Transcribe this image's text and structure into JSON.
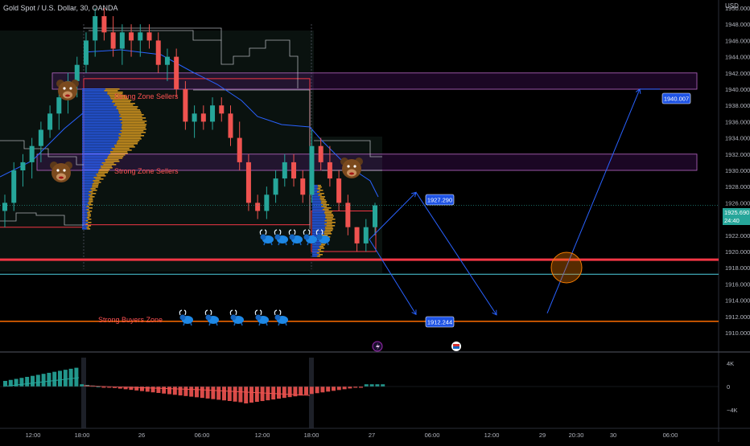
{
  "header": {
    "symbol_title": "Gold Spot / U.S. Dollar, 30, OANDA",
    "currency": "USD"
  },
  "colors": {
    "up": "#26a69a",
    "down": "#ef5350",
    "text": "#b2b5be",
    "grid": "#131722",
    "zone_fill": "#7b1fa2",
    "support_red": "#f23645",
    "support_cyan": "#4dd0e1",
    "orange_line": "#ff6d00",
    "arrow": "#2962ff",
    "label_bg": "#1e53e5",
    "vp_blue": "#2962ff",
    "vp_gold": "#e0a020",
    "circle": "#f57c00"
  },
  "price_axis": {
    "ticks": [
      "1950.000",
      "1948.000",
      "1946.000",
      "1944.000",
      "1942.000",
      "1940.000",
      "1938.000",
      "1936.000",
      "1934.000",
      "1932.000",
      "1930.000",
      "1928.000",
      "1926.000",
      "1924.000",
      "1922.000",
      "1920.000",
      "1918.000",
      "1916.000",
      "1914.000",
      "1912.000",
      "1910.000"
    ],
    "current_price": "1925.690",
    "countdown": "24:40"
  },
  "oscillator_axis": {
    "ticks": [
      "4K",
      "0",
      "−4K"
    ]
  },
  "time_axis": {
    "ticks": [
      "12:00",
      "18:00",
      "26",
      "06:00",
      "12:00",
      "18:00",
      "27",
      "06:00",
      "12:00",
      "29",
      "20:30",
      "30",
      "06:00"
    ]
  },
  "annotations": {
    "sellers_zone_upper": "Strong Zone Sellers",
    "sellers_zone_lower": "Strong Zone Sellers",
    "buyers_zone": "Strong Buyers Zone",
    "target_1": "1927.290",
    "target_2": "1912.244",
    "target_3": "1940.007"
  },
  "icons": {
    "bear": "bear-face-icon",
    "bull": "bull-icon",
    "lightning": "lightning-event-icon",
    "flag": "economic-event-flag-icon"
  },
  "chart_data": {
    "type": "candlestick",
    "title": "Gold Spot / U.S. Dollar, 30, OANDA",
    "xlabel": "",
    "ylabel": "",
    "ylim": [
      1909,
      1951
    ],
    "grid": false,
    "ohlc": [
      [
        1925,
        1927,
        1923,
        1926
      ],
      [
        1926,
        1931,
        1925,
        1930
      ],
      [
        1930,
        1932,
        1928,
        1931
      ],
      [
        1931,
        1934,
        1929,
        1933
      ],
      [
        1933,
        1936,
        1931,
        1935
      ],
      [
        1935,
        1938,
        1934,
        1937
      ],
      [
        1937,
        1940,
        1935,
        1939
      ],
      [
        1939,
        1942,
        1937,
        1941
      ],
      [
        1941,
        1944,
        1939,
        1943
      ],
      [
        1943,
        1947,
        1942,
        1946
      ],
      [
        1946,
        1950,
        1944,
        1949
      ],
      [
        1949,
        1950,
        1946,
        1947
      ],
      [
        1947,
        1949,
        1944,
        1945
      ],
      [
        1945,
        1948,
        1943,
        1947
      ],
      [
        1947,
        1948,
        1944,
        1946
      ],
      [
        1946,
        1948,
        1944,
        1947
      ],
      [
        1947,
        1948,
        1945,
        1946
      ],
      [
        1946,
        1947,
        1942,
        1943
      ],
      [
        1943,
        1945,
        1941,
        1944
      ],
      [
        1944,
        1945,
        1939,
        1940
      ],
      [
        1940,
        1941,
        1935,
        1936
      ],
      [
        1936,
        1938,
        1934,
        1937
      ],
      [
        1937,
        1938,
        1935,
        1936
      ],
      [
        1936,
        1939,
        1935,
        1938
      ],
      [
        1938,
        1939,
        1936,
        1937
      ],
      [
        1937,
        1938,
        1933,
        1934
      ],
      [
        1934,
        1936,
        1930,
        1931
      ],
      [
        1931,
        1932,
        1925,
        1926
      ],
      [
        1926,
        1927,
        1924,
        1925
      ],
      [
        1925,
        1928,
        1924,
        1927
      ],
      [
        1927,
        1930,
        1926,
        1929
      ],
      [
        1929,
        1932,
        1928,
        1931
      ],
      [
        1931,
        1932,
        1928,
        1929
      ],
      [
        1929,
        1930,
        1926,
        1927
      ],
      [
        1927,
        1935,
        1926,
        1933
      ],
      [
        1933,
        1934,
        1930,
        1931
      ],
      [
        1931,
        1933,
        1928,
        1929
      ],
      [
        1929,
        1930,
        1925,
        1926
      ],
      [
        1926,
        1927,
        1922,
        1923
      ],
      [
        1923,
        1923,
        1920,
        1921
      ],
      [
        1921,
        1924,
        1920,
        1923
      ],
      [
        1923,
        1926,
        1922,
        1925.69
      ]
    ],
    "levels": {
      "strong_sellers_upper": [
        1940,
        1942
      ],
      "strong_sellers_lower": [
        1930,
        1932
      ],
      "support_red": 1919,
      "support_cyan": 1917.2,
      "strong_buyers": 1911.4
    },
    "projection_path": [
      [
        1921.5,
        "27"
      ],
      [
        1927.29,
        "06:00"
      ],
      [
        1912.244,
        "12:00"
      ],
      [
        1940.007,
        "30"
      ]
    ],
    "oscillator_range": [
      -4000,
      4000
    ]
  }
}
